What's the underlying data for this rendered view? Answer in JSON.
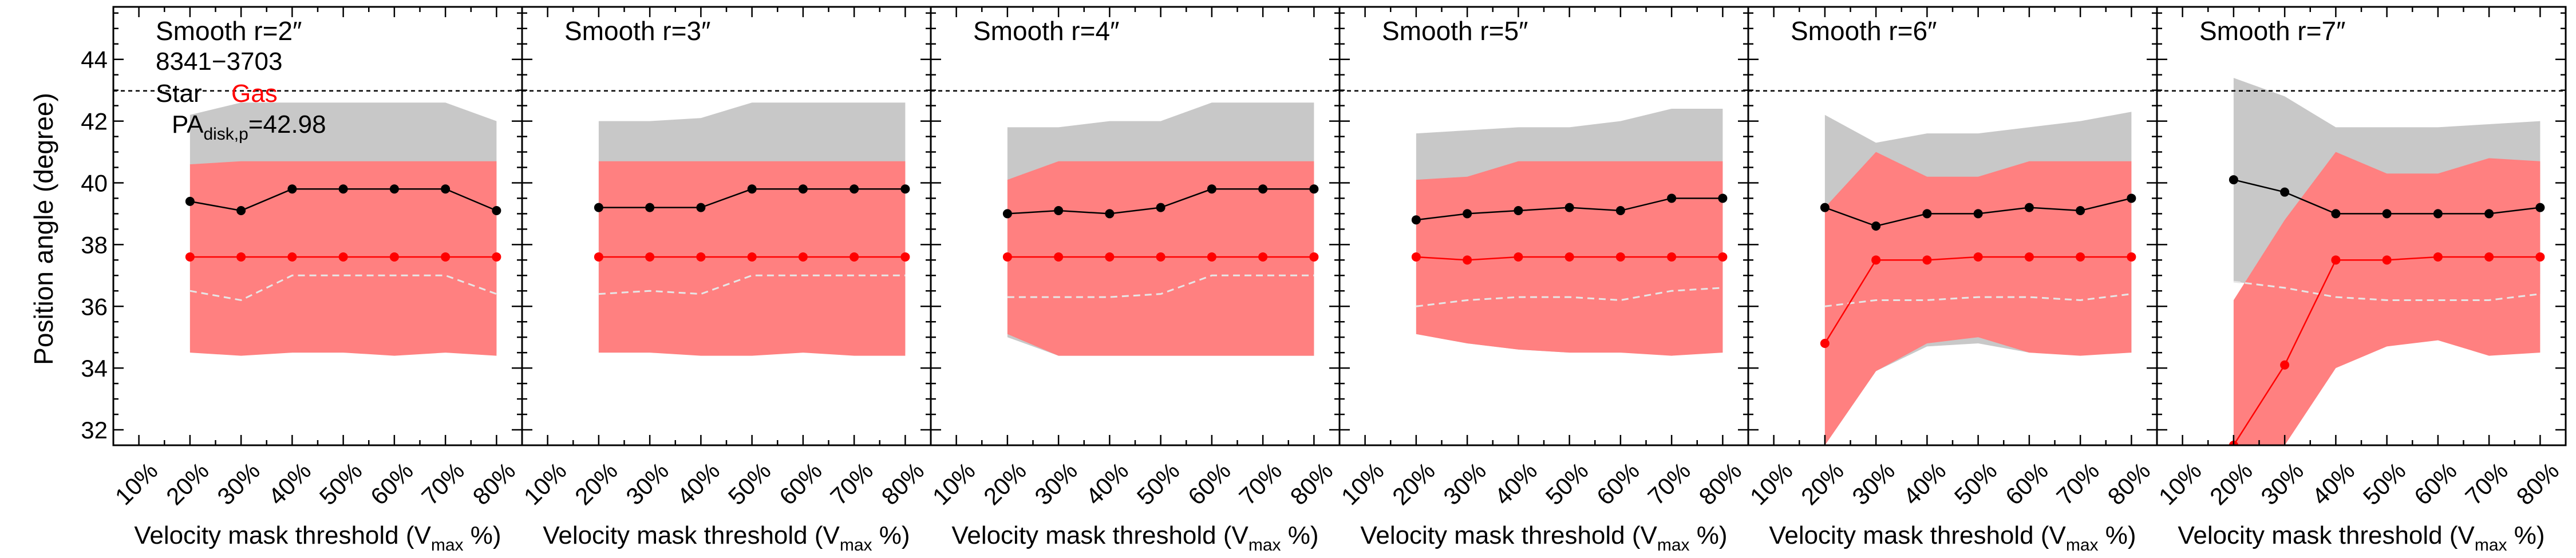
{
  "figure": {
    "ylabel": "Position angle (degree)",
    "xlabel_main": "Velocity mask threshold (V",
    "xlabel_sub": "max",
    "xlabel_end": " %)"
  },
  "annotation": {
    "id": "8341−3703",
    "star_label": "Star",
    "gas_label": "Gas",
    "pa_prefix": "PA",
    "pa_sub": "disk,p",
    "pa_value": "=42.98"
  },
  "colors": {
    "star": "#000000",
    "gas": "#ff0000",
    "star_band": "#c8c8c8",
    "gas_band": "#ff8080",
    "median_dash": "#e6e6e6"
  },
  "chart_data": [
    {
      "type": "line",
      "title": "Smooth r=2″",
      "x_ticks": [
        "10%",
        "20%",
        "30%",
        "40%",
        "50%",
        "60%",
        "70%",
        "80%"
      ],
      "x": [
        20,
        30,
        40,
        50,
        60,
        70,
        80
      ],
      "xlim": [
        5,
        85
      ],
      "ylim": [
        31.5,
        45.7
      ],
      "y_ticks": [
        32,
        34,
        36,
        38,
        40,
        42,
        44
      ],
      "reference_line": 42.98,
      "series": [
        {
          "name": "Star",
          "values": [
            39.4,
            39.1,
            39.8,
            39.8,
            39.8,
            39.8,
            39.1
          ]
        },
        {
          "name": "Gas",
          "values": [
            37.6,
            37.6,
            37.6,
            37.6,
            37.6,
            37.6,
            37.6
          ]
        }
      ],
      "star_band": {
        "upper": [
          42.2,
          42.6,
          42.6,
          42.6,
          42.6,
          42.6,
          42.0
        ],
        "lower": [
          34.6,
          34.5,
          34.5,
          34.5,
          34.5,
          34.5,
          34.5
        ]
      },
      "gas_band": {
        "upper": [
          40.6,
          40.7,
          40.7,
          40.7,
          40.7,
          40.7,
          40.7
        ],
        "lower": [
          34.5,
          34.4,
          34.5,
          34.5,
          34.4,
          34.5,
          34.4
        ]
      },
      "gas_median": [
        36.5,
        36.2,
        37.0,
        37.0,
        37.0,
        37.0,
        36.4
      ]
    },
    {
      "type": "line",
      "title": "Smooth r=3″",
      "x_ticks": [
        "10%",
        "20%",
        "30%",
        "40%",
        "50%",
        "60%",
        "70%",
        "80%"
      ],
      "x": [
        20,
        30,
        40,
        50,
        60,
        70,
        80
      ],
      "xlim": [
        5,
        85
      ],
      "ylim": [
        31.5,
        45.7
      ],
      "y_ticks": [
        32,
        34,
        36,
        38,
        40,
        42,
        44
      ],
      "reference_line": 42.98,
      "series": [
        {
          "name": "Star",
          "values": [
            39.2,
            39.2,
            39.2,
            39.8,
            39.8,
            39.8,
            39.8
          ]
        },
        {
          "name": "Gas",
          "values": [
            37.6,
            37.6,
            37.6,
            37.6,
            37.6,
            37.6,
            37.6
          ]
        }
      ],
      "star_band": {
        "upper": [
          42.0,
          42.0,
          42.1,
          42.6,
          42.6,
          42.6,
          42.6
        ],
        "lower": [
          34.5,
          34.5,
          34.5,
          34.5,
          34.5,
          34.5,
          34.5
        ]
      },
      "gas_band": {
        "upper": [
          40.7,
          40.7,
          40.7,
          40.7,
          40.7,
          40.7,
          40.7
        ],
        "lower": [
          34.5,
          34.5,
          34.4,
          34.4,
          34.5,
          34.4,
          34.4
        ]
      },
      "gas_median": [
        36.4,
        36.5,
        36.4,
        37.0,
        37.0,
        37.0,
        37.0
      ]
    },
    {
      "type": "line",
      "title": "Smooth r=4″",
      "x_ticks": [
        "10%",
        "20%",
        "30%",
        "40%",
        "50%",
        "60%",
        "70%",
        "80%"
      ],
      "x": [
        20,
        30,
        40,
        50,
        60,
        70,
        80
      ],
      "xlim": [
        5,
        85
      ],
      "ylim": [
        31.5,
        45.7
      ],
      "y_ticks": [
        32,
        34,
        36,
        38,
        40,
        42,
        44
      ],
      "reference_line": 42.98,
      "series": [
        {
          "name": "Star",
          "values": [
            39.0,
            39.1,
            39.0,
            39.2,
            39.8,
            39.8,
            39.8
          ]
        },
        {
          "name": "Gas",
          "values": [
            37.6,
            37.6,
            37.6,
            37.6,
            37.6,
            37.6,
            37.6
          ]
        }
      ],
      "star_band": {
        "upper": [
          41.8,
          41.8,
          42.0,
          42.0,
          42.6,
          42.6,
          42.6
        ],
        "lower": [
          35.0,
          34.4,
          34.4,
          34.4,
          34.4,
          34.4,
          34.4
        ]
      },
      "gas_band": {
        "upper": [
          40.1,
          40.7,
          40.7,
          40.7,
          40.7,
          40.7,
          40.7
        ],
        "lower": [
          35.1,
          34.4,
          34.4,
          34.4,
          34.4,
          34.4,
          34.4
        ]
      },
      "gas_median": [
        36.3,
        36.3,
        36.3,
        36.4,
        37.0,
        37.0,
        37.0
      ]
    },
    {
      "type": "line",
      "title": "Smooth r=5″",
      "x_ticks": [
        "10%",
        "20%",
        "30%",
        "40%",
        "50%",
        "60%",
        "70%",
        "80%"
      ],
      "x": [
        20,
        30,
        40,
        50,
        60,
        70,
        80
      ],
      "xlim": [
        5,
        85
      ],
      "ylim": [
        31.5,
        45.7
      ],
      "y_ticks": [
        32,
        34,
        36,
        38,
        40,
        42,
        44
      ],
      "reference_line": 42.98,
      "series": [
        {
          "name": "Star",
          "values": [
            38.8,
            39.0,
            39.1,
            39.2,
            39.1,
            39.5,
            39.5
          ]
        },
        {
          "name": "Gas",
          "values": [
            37.6,
            37.5,
            37.6,
            37.6,
            37.6,
            37.6,
            37.6
          ]
        }
      ],
      "star_band": {
        "upper": [
          41.6,
          41.7,
          41.8,
          41.8,
          42.0,
          42.4,
          42.4
        ],
        "lower": [
          35.1,
          34.8,
          34.6,
          34.5,
          34.5,
          34.5,
          34.5
        ]
      },
      "gas_band": {
        "upper": [
          40.1,
          40.2,
          40.7,
          40.7,
          40.7,
          40.7,
          40.7
        ],
        "lower": [
          35.1,
          34.8,
          34.6,
          34.5,
          34.5,
          34.4,
          34.5
        ]
      },
      "gas_median": [
        36.0,
        36.2,
        36.3,
        36.3,
        36.2,
        36.5,
        36.6
      ]
    },
    {
      "type": "line",
      "title": "Smooth r=6″",
      "x_ticks": [
        "10%",
        "20%",
        "30%",
        "40%",
        "50%",
        "60%",
        "70%",
        "80%"
      ],
      "x": [
        20,
        30,
        40,
        50,
        60,
        70,
        80
      ],
      "xlim": [
        5,
        85
      ],
      "ylim": [
        31.5,
        45.7
      ],
      "y_ticks": [
        32,
        34,
        36,
        38,
        40,
        42,
        44
      ],
      "reference_line": 42.98,
      "series": [
        {
          "name": "Star",
          "values": [
            39.2,
            38.6,
            39.0,
            39.0,
            39.2,
            39.1,
            39.5
          ]
        },
        {
          "name": "Gas",
          "values": [
            34.8,
            37.5,
            37.5,
            37.6,
            37.6,
            37.6,
            37.6
          ]
        }
      ],
      "star_band": {
        "upper": [
          42.2,
          41.3,
          41.6,
          41.6,
          41.8,
          42.0,
          42.3
        ],
        "lower": [
          31.5,
          33.9,
          34.7,
          34.8,
          34.5,
          34.5,
          34.5
        ]
      },
      "gas_band": {
        "upper": [
          39.2,
          41.0,
          40.2,
          40.2,
          40.7,
          40.7,
          40.7
        ],
        "lower": [
          31.5,
          33.9,
          34.8,
          35.0,
          34.5,
          34.4,
          34.5
        ]
      },
      "gas_median": [
        36.0,
        36.2,
        36.2,
        36.3,
        36.3,
        36.2,
        36.4
      ]
    },
    {
      "type": "line",
      "title": "Smooth r=7″",
      "x_ticks": [
        "10%",
        "20%",
        "30%",
        "40%",
        "50%",
        "60%",
        "70%",
        "80%"
      ],
      "x": [
        20,
        30,
        40,
        50,
        60,
        70,
        80
      ],
      "xlim": [
        5,
        85
      ],
      "ylim": [
        31.5,
        45.7
      ],
      "y_ticks": [
        32,
        34,
        36,
        38,
        40,
        42,
        44
      ],
      "reference_line": 42.98,
      "series": [
        {
          "name": "Star",
          "values": [
            40.1,
            39.7,
            39.0,
            39.0,
            39.0,
            39.0,
            39.2
          ]
        },
        {
          "name": "Gas",
          "values": [
            31.5,
            34.1,
            37.5,
            37.5,
            37.6,
            37.6,
            37.6
          ]
        }
      ],
      "star_band": {
        "upper": [
          43.4,
          42.8,
          41.8,
          41.8,
          41.8,
          41.9,
          42.0
        ],
        "lower": [
          36.8,
          36.6,
          36.2,
          36.2,
          36.2,
          36.2,
          36.4
        ]
      },
      "gas_band": {
        "upper": [
          36.2,
          38.8,
          41.0,
          40.3,
          40.3,
          40.8,
          40.7
        ],
        "lower": [
          31.5,
          31.5,
          34.0,
          34.7,
          34.9,
          34.4,
          34.5
        ]
      },
      "gas_median": [
        36.8,
        36.6,
        36.3,
        36.2,
        36.2,
        36.2,
        36.4
      ]
    }
  ]
}
